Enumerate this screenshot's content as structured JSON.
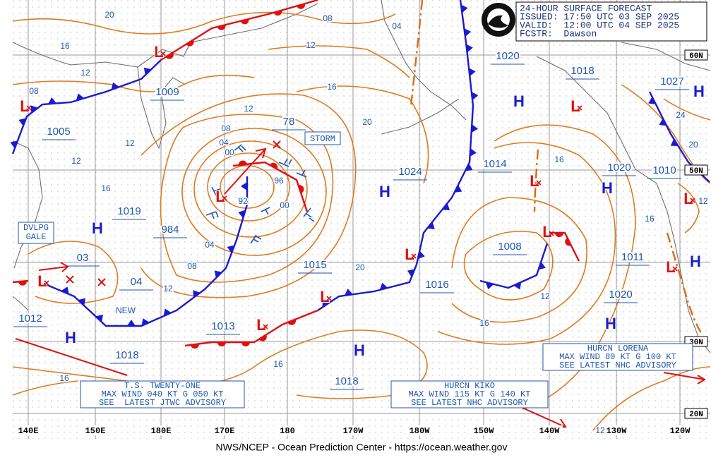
{
  "header": {
    "title": "24-HOUR SURFACE FORECAST",
    "issued": "ISSUED: 17:50 UTC 03 SEP 2025",
    "valid": "VALID:  12:00 UTC 04 SEP 2025",
    "forecaster": "FCSTR:  Dawson"
  },
  "footer": "NWS/NCEP - Ocean Prediction Center - https://ocean.weather.gov",
  "longitudes": [
    "140E",
    "150E",
    "180E",
    "170E",
    "180",
    "170W",
    "180W",
    "150W",
    "140W",
    "130W",
    "120W"
  ],
  "latitudes": [
    "60N",
    "50N",
    "30N",
    "20N"
  ],
  "pressures": [
    "1005",
    "1009",
    "1019",
    "984",
    "03",
    "04",
    "1012",
    "1018",
    "1013",
    "1015",
    "1024",
    "1016",
    "1018",
    "1008",
    "1014",
    "1020",
    "1018",
    "1027",
    "1020",
    "1010",
    "1011",
    "1020",
    "78"
  ],
  "isobar_labels": [
    "20",
    "16",
    "08",
    "04",
    "12",
    "12",
    "08",
    "16",
    "12",
    "20",
    "08",
    "04",
    "00",
    "12",
    "12",
    "16",
    "96",
    "92",
    "00",
    "04",
    "08",
    "12",
    "20",
    "16",
    "24",
    "20",
    "12",
    "16",
    "12",
    "16",
    "16",
    "16",
    "12"
  ],
  "symbols": {
    "high": "H",
    "low": "L"
  },
  "storm_box": "STORM",
  "gale_box": [
    "DVLPG",
    "GALE"
  ],
  "new_label": "NEW",
  "advisories": [
    [
      "T.S. TWENTY-ONE",
      "MAX WIND 040 KT G 050 KT",
      "SEE  LATEST JTWC ADVISORY"
    ],
    [
      "HURCN KIKO",
      "MAX WIND 115 KT G 140 KT",
      "SEE LATEST NHC ADVISORY"
    ],
    [
      "HURCN LORENA",
      "MAX WIND 80 KT G 100 KT",
      "SEE LATEST NHC ADVISORY"
    ]
  ]
}
